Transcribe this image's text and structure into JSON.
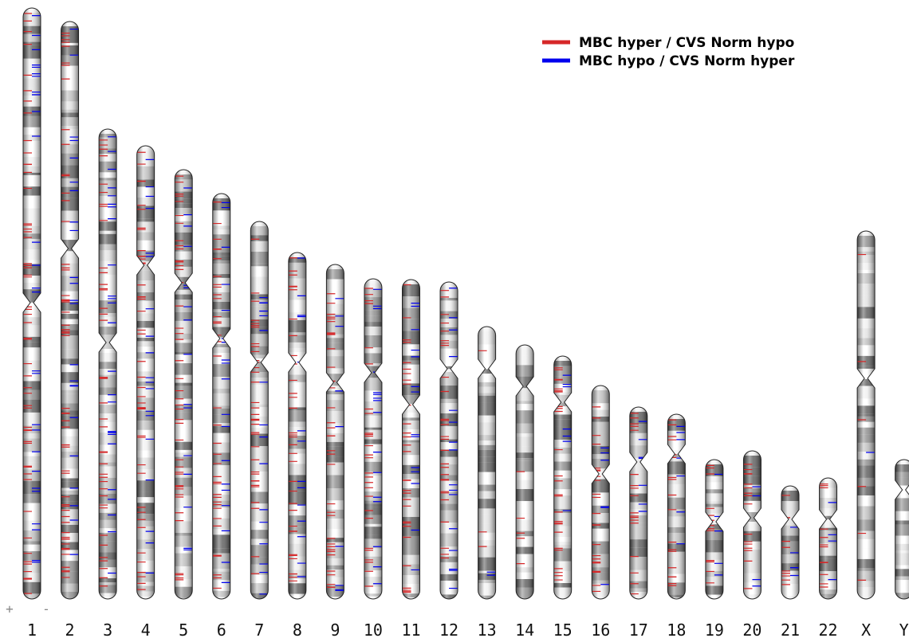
{
  "legend": [
    {
      "label": "MBC hyper / CVS Norm hypo",
      "color": "#d62728"
    },
    {
      "label": "MBC hypo / CVS Norm hyper",
      "color": "#0000ee"
    }
  ],
  "strand_labels": [
    "+",
    "-"
  ],
  "chromosomes": [
    "1",
    "2",
    "3",
    "4",
    "5",
    "6",
    "7",
    "8",
    "9",
    "10",
    "11",
    "12",
    "13",
    "14",
    "15",
    "16",
    "17",
    "18",
    "19",
    "20",
    "21",
    "22",
    "X",
    "Y"
  ]
}
